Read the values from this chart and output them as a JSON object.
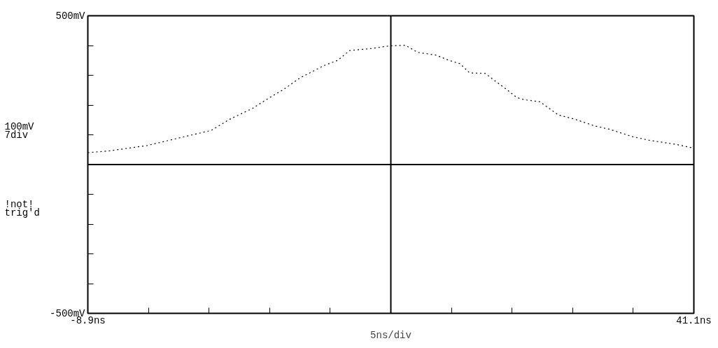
{
  "chart_data": {
    "type": "line",
    "line_style": "dotted",
    "marker": "none",
    "series": [
      {
        "color": "#000000",
        "x": [
          -8.9,
          -7.1,
          -4.0,
          -1.3,
          1.3,
          2.8,
          4.7,
          6.1,
          7.2,
          8.6,
          10.6,
          11.7,
          12.7,
          14.5,
          16.0,
          17.3,
          18.3,
          19.8,
          20.9,
          21.8,
          22.6,
          23.9,
          24.6,
          25.7,
          26.5,
          27.1,
          28.4,
          29.9,
          31.3,
          32.9,
          34.1,
          36.1,
          37.5,
          39.6,
          41.1
        ],
        "values": [
          40,
          46,
          64,
          90,
          115,
          152,
          189,
          225,
          251,
          291,
          333,
          350,
          383,
          390,
          399,
          401,
          377,
          368,
          350,
          339,
          308,
          306,
          284,
          251,
          225,
          218,
          211,
          167,
          152,
          130,
          119,
          93,
          81,
          68,
          55
        ]
      }
    ],
    "xlim": [
      -8.9,
      41.1
    ],
    "xticks": [
      {
        "value": -8.9,
        "label": "-8.9ns"
      },
      {
        "value": -3.9,
        "label": null
      },
      {
        "value": 1.1,
        "label": null
      },
      {
        "value": 6.1,
        "label": null
      },
      {
        "value": 11.1,
        "label": null
      },
      {
        "value": 16.1,
        "label": null
      },
      {
        "value": 21.1,
        "label": null
      },
      {
        "value": 26.1,
        "label": null
      },
      {
        "value": 31.1,
        "label": null
      },
      {
        "value": 36.1,
        "label": null
      },
      {
        "value": 41.1,
        "label": "41.1ns"
      }
    ],
    "ylim": [
      -500,
      500
    ],
    "yticks": [
      {
        "value": -500,
        "label": "-500mV"
      },
      {
        "value": -400,
        "label": null
      },
      {
        "value": -300,
        "label": null
      },
      {
        "value": -200,
        "label": null
      },
      {
        "value": -100,
        "label": null
      },
      {
        "value": 0,
        "label": null
      },
      {
        "value": 100,
        "label": null
      },
      {
        "value": 200,
        "label": null
      },
      {
        "value": 300,
        "label": null
      },
      {
        "value": 400,
        "label": null
      },
      {
        "value": 500,
        "label": "500mV"
      }
    ],
    "ref_lines": [
      {
        "axis": "x",
        "value": 16.1,
        "color": "#000000"
      },
      {
        "axis": "y",
        "value": 0,
        "color": "#000000"
      }
    ],
    "annotations": [
      "100mV",
      "7div",
      "!not!",
      "trig'd"
    ],
    "xlabel": "5ns/div",
    "grid": false
  }
}
